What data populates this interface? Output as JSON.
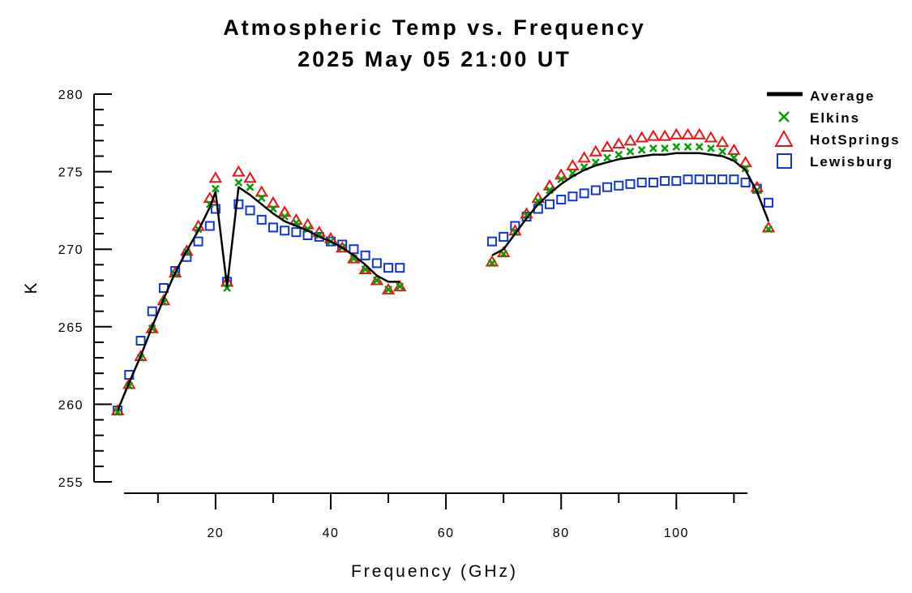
{
  "chart_data": {
    "type": "scatter",
    "title": "Atmospheric Temp vs. Frequency",
    "subtitle": "2025 May 05 21:00 UT",
    "xlabel": "Frequency (GHz)",
    "ylabel": "K",
    "xlim": [
      2,
      116
    ],
    "ylim": [
      255,
      280
    ],
    "xticks": [
      20,
      40,
      60,
      80,
      100
    ],
    "yticks": [
      255,
      260,
      265,
      270,
      275,
      280
    ],
    "grid": false,
    "legend_position": "top-right",
    "series": [
      {
        "name": "Average",
        "marker": "line",
        "color": "#000000",
        "segments": [
          [
            [
              3,
              259.6
            ],
            [
              5,
              261.4
            ],
            [
              7,
              263.1
            ],
            [
              9,
              265.0
            ],
            [
              11,
              266.8
            ],
            [
              13,
              268.5
            ],
            [
              15,
              269.9
            ],
            [
              17,
              271.2
            ],
            [
              19,
              272.7
            ],
            [
              20,
              273.7
            ],
            [
              22,
              267.6
            ],
            [
              24,
              274.0
            ],
            [
              26,
              273.5
            ],
            [
              28,
              272.9
            ],
            [
              30,
              272.3
            ],
            [
              32,
              271.8
            ],
            [
              34,
              271.5
            ],
            [
              36,
              271.2
            ],
            [
              38,
              270.8
            ],
            [
              40,
              270.5
            ],
            [
              42,
              270.1
            ],
            [
              44,
              269.6
            ],
            [
              46,
              269.0
            ],
            [
              48,
              268.3
            ],
            [
              50,
              267.9
            ],
            [
              52,
              267.9
            ]
          ],
          [
            [
              68,
              269.6
            ],
            [
              70,
              270.0
            ],
            [
              72,
              271.0
            ],
            [
              74,
              272.0
            ],
            [
              76,
              272.9
            ],
            [
              78,
              273.6
            ],
            [
              80,
              274.2
            ],
            [
              82,
              274.7
            ],
            [
              84,
              275.1
            ],
            [
              86,
              275.4
            ],
            [
              88,
              275.6
            ],
            [
              90,
              275.8
            ],
            [
              92,
              275.9
            ],
            [
              94,
              276.0
            ],
            [
              96,
              276.1
            ],
            [
              98,
              276.1
            ],
            [
              100,
              276.2
            ],
            [
              102,
              276.2
            ],
            [
              104,
              276.2
            ],
            [
              106,
              276.1
            ],
            [
              108,
              276.0
            ],
            [
              110,
              275.7
            ],
            [
              112,
              275.1
            ],
            [
              114,
              273.7
            ],
            [
              116,
              271.8
            ]
          ]
        ]
      },
      {
        "name": "Elkins",
        "marker": "x",
        "color": "#00a000",
        "points": [
          [
            3,
            259.5
          ],
          [
            5,
            261.2
          ],
          [
            7,
            263.0
          ],
          [
            9,
            264.9
          ],
          [
            11,
            266.6
          ],
          [
            13,
            268.4
          ],
          [
            15,
            269.8
          ],
          [
            17,
            271.3
          ],
          [
            19,
            272.9
          ],
          [
            20,
            273.9
          ],
          [
            22,
            267.5
          ],
          [
            24,
            274.3
          ],
          [
            26,
            274.0
          ],
          [
            28,
            273.3
          ],
          [
            30,
            272.6
          ],
          [
            32,
            272.1
          ],
          [
            34,
            271.7
          ],
          [
            36,
            271.3
          ],
          [
            38,
            270.9
          ],
          [
            40,
            270.5
          ],
          [
            42,
            270.1
          ],
          [
            44,
            269.4
          ],
          [
            46,
            268.7
          ],
          [
            48,
            268.0
          ],
          [
            50,
            267.4
          ],
          [
            52,
            267.6
          ],
          [
            68,
            269.1
          ],
          [
            70,
            269.7
          ],
          [
            72,
            271.1
          ],
          [
            74,
            272.2
          ],
          [
            76,
            273.1
          ],
          [
            78,
            273.8
          ],
          [
            80,
            274.5
          ],
          [
            82,
            274.9
          ],
          [
            84,
            275.3
          ],
          [
            86,
            275.6
          ],
          [
            88,
            275.9
          ],
          [
            90,
            276.1
          ],
          [
            92,
            276.3
          ],
          [
            94,
            276.4
          ],
          [
            96,
            276.5
          ],
          [
            98,
            276.5
          ],
          [
            100,
            276.6
          ],
          [
            102,
            276.6
          ],
          [
            104,
            276.6
          ],
          [
            106,
            276.5
          ],
          [
            108,
            276.3
          ],
          [
            110,
            275.9
          ],
          [
            112,
            275.2
          ],
          [
            114,
            273.8
          ],
          [
            116,
            271.3
          ]
        ]
      },
      {
        "name": "HotSprings",
        "marker": "triangle",
        "color": "#ee1111",
        "points": [
          [
            3,
            259.6
          ],
          [
            5,
            261.3
          ],
          [
            7,
            263.1
          ],
          [
            9,
            264.9
          ],
          [
            11,
            266.7
          ],
          [
            13,
            268.5
          ],
          [
            15,
            269.9
          ],
          [
            17,
            271.5
          ],
          [
            19,
            273.3
          ],
          [
            20,
            274.6
          ],
          [
            22,
            267.9
          ],
          [
            24,
            275.0
          ],
          [
            26,
            274.6
          ],
          [
            28,
            273.7
          ],
          [
            30,
            273.0
          ],
          [
            32,
            272.4
          ],
          [
            34,
            271.9
          ],
          [
            36,
            271.6
          ],
          [
            38,
            271.1
          ],
          [
            40,
            270.7
          ],
          [
            42,
            270.1
          ],
          [
            44,
            269.4
          ],
          [
            46,
            268.7
          ],
          [
            48,
            268.0
          ],
          [
            50,
            267.4
          ],
          [
            52,
            267.6
          ],
          [
            68,
            269.2
          ],
          [
            70,
            269.8
          ],
          [
            72,
            271.2
          ],
          [
            74,
            272.3
          ],
          [
            76,
            273.3
          ],
          [
            78,
            274.1
          ],
          [
            80,
            274.8
          ],
          [
            82,
            275.4
          ],
          [
            84,
            275.9
          ],
          [
            86,
            276.3
          ],
          [
            88,
            276.6
          ],
          [
            90,
            276.8
          ],
          [
            92,
            277.0
          ],
          [
            94,
            277.2
          ],
          [
            96,
            277.3
          ],
          [
            98,
            277.3
          ],
          [
            100,
            277.4
          ],
          [
            102,
            277.4
          ],
          [
            104,
            277.4
          ],
          [
            106,
            277.2
          ],
          [
            108,
            276.9
          ],
          [
            110,
            276.4
          ],
          [
            112,
            275.6
          ],
          [
            114,
            274.0
          ],
          [
            116,
            271.4
          ]
        ]
      },
      {
        "name": "Lewisburg",
        "marker": "square",
        "color": "#1133dd",
        "points": [
          [
            3,
            259.6
          ],
          [
            5,
            261.9
          ],
          [
            7,
            264.1
          ],
          [
            9,
            266.0
          ],
          [
            11,
            267.5
          ],
          [
            13,
            268.6
          ],
          [
            15,
            269.5
          ],
          [
            17,
            270.5
          ],
          [
            19,
            271.5
          ],
          [
            20,
            272.6
          ],
          [
            22,
            267.9
          ],
          [
            24,
            272.9
          ],
          [
            26,
            272.5
          ],
          [
            28,
            271.9
          ],
          [
            30,
            271.4
          ],
          [
            32,
            271.2
          ],
          [
            34,
            271.1
          ],
          [
            36,
            270.9
          ],
          [
            38,
            270.8
          ],
          [
            40,
            270.5
          ],
          [
            42,
            270.3
          ],
          [
            44,
            270.0
          ],
          [
            46,
            269.6
          ],
          [
            48,
            269.1
          ],
          [
            50,
            268.8
          ],
          [
            52,
            268.8
          ],
          [
            68,
            270.5
          ],
          [
            70,
            270.8
          ],
          [
            72,
            271.5
          ],
          [
            74,
            272.1
          ],
          [
            76,
            272.6
          ],
          [
            78,
            272.9
          ],
          [
            80,
            273.2
          ],
          [
            82,
            273.4
          ],
          [
            84,
            273.6
          ],
          [
            86,
            273.8
          ],
          [
            88,
            274.0
          ],
          [
            90,
            274.1
          ],
          [
            92,
            274.2
          ],
          [
            94,
            274.3
          ],
          [
            96,
            274.3
          ],
          [
            98,
            274.4
          ],
          [
            100,
            274.4
          ],
          [
            102,
            274.5
          ],
          [
            104,
            274.5
          ],
          [
            106,
            274.5
          ],
          [
            108,
            274.5
          ],
          [
            110,
            274.5
          ],
          [
            112,
            274.3
          ],
          [
            114,
            273.9
          ],
          [
            116,
            273.0
          ]
        ]
      }
    ]
  }
}
